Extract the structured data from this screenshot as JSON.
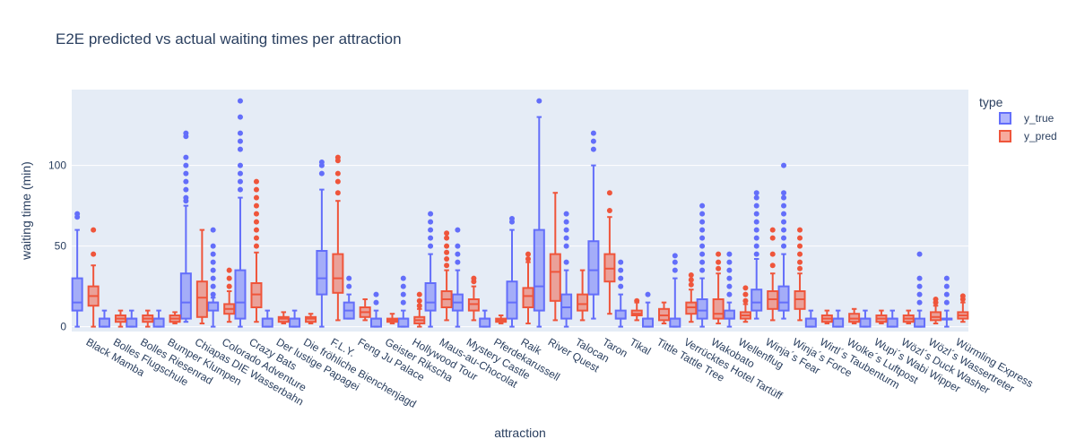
{
  "chart_data": {
    "type": "box",
    "title": "E2E predicted vs actual waiting times per attraction",
    "xlabel": "attraction",
    "ylabel": "waiting time (min)",
    "ylim": [
      -3,
      147
    ],
    "yticks": [
      0,
      50,
      100
    ],
    "grid": true,
    "legend": {
      "title": "type",
      "placement": "top-right",
      "entries": [
        "y_true",
        "y_pred"
      ]
    },
    "colors": {
      "y_true": "#636efa",
      "y_true_fill": "rgba(99,110,250,0.5)",
      "y_pred": "#ef553b",
      "y_pred_fill": "rgba(239,85,59,0.5)",
      "plot_bg": "#e5ecf6",
      "grid": "#ffffff"
    },
    "categories": [
      "Black Mamba",
      "Bolles Flugschule",
      "Bolles Riesenrad",
      "Bumper Klumpen",
      "Chiapas DIE Wasserbahn",
      "Colorado Adventure",
      "Crazy Bats",
      "Der lustige Papagei",
      "Die fröhliche Bienchenjagd",
      "F.L.Y.",
      "Feng Ju Palace",
      "Geister Rikscha",
      "Hollywood Tour",
      "Maus-au-Chocolat",
      "Mystery Castle",
      "Pferdekarussell",
      "Raik",
      "River Quest",
      "Talocan",
      "Taron",
      "Tikal",
      "Tittle Tattle Tree",
      "Verrücktes Hotel Tartüff",
      "Wakobato",
      "Wellenflug",
      "Winja´s Fear",
      "Winja´s Force",
      "Wirtl´s Taubenturm",
      "Wolke´s Luftpost",
      "Wupi´s Wabi Wipper",
      "Wözl´s Duck Washer",
      "Wözl´s Wassertreter",
      "Würmling Express"
    ],
    "series": [
      {
        "name": "y_true",
        "boxes": [
          {
            "min": 0,
            "q1": 10,
            "median": 15,
            "q3": 30,
            "max": 60,
            "outliers": [
              68,
              70
            ]
          },
          {
            "min": 0,
            "q1": 0,
            "median": 5,
            "q3": 5,
            "max": 10,
            "outliers": []
          },
          {
            "min": 0,
            "q1": 0,
            "median": 5,
            "q3": 5,
            "max": 10,
            "outliers": []
          },
          {
            "min": 0,
            "q1": 0,
            "median": 5,
            "q3": 5,
            "max": 10,
            "outliers": []
          },
          {
            "min": 3,
            "q1": 5,
            "median": 15,
            "q3": 33,
            "max": 75,
            "outliers": [
              78,
              80,
              85,
              90,
              95,
              100,
              105,
              118,
              120
            ]
          },
          {
            "min": 0,
            "q1": 10,
            "median": 15,
            "q3": 15,
            "max": 18,
            "outliers": [
              20,
              25,
              30,
              35,
              40,
              45,
              50,
              60
            ]
          },
          {
            "min": 0,
            "q1": 5,
            "median": 15,
            "q3": 35,
            "max": 80,
            "outliers": [
              85,
              90,
              95,
              100,
              110,
              115,
              120,
              130,
              140
            ]
          },
          {
            "min": 0,
            "q1": 0,
            "median": 5,
            "q3": 5,
            "max": 10,
            "outliers": []
          },
          {
            "min": 0,
            "q1": 0,
            "median": 5,
            "q3": 5,
            "max": 10,
            "outliers": []
          },
          {
            "min": 0,
            "q1": 20,
            "median": 30,
            "q3": 47,
            "max": 85,
            "outliers": [
              95,
              100,
              102
            ]
          },
          {
            "min": 5,
            "q1": 5,
            "median": 10,
            "q3": 15,
            "max": 20,
            "outliers": [
              25,
              30
            ]
          },
          {
            "min": 0,
            "q1": 0,
            "median": 5,
            "q3": 5,
            "max": 10,
            "outliers": [
              15,
              20
            ]
          },
          {
            "min": 0,
            "q1": 0,
            "median": 5,
            "q3": 5,
            "max": 10,
            "outliers": [
              15,
              20,
              25,
              30
            ]
          },
          {
            "min": 0,
            "q1": 10,
            "median": 15,
            "q3": 27,
            "max": 45,
            "outliers": [
              50,
              55,
              60,
              65,
              70
            ]
          },
          {
            "min": 0,
            "q1": 10,
            "median": 15,
            "q3": 20,
            "max": 35,
            "outliers": [
              40,
              45,
              50,
              60
            ]
          },
          {
            "min": 0,
            "q1": 0,
            "median": 5,
            "q3": 5,
            "max": 10,
            "outliers": []
          },
          {
            "min": 0,
            "q1": 5,
            "median": 15,
            "q3": 28,
            "max": 60,
            "outliers": [
              65,
              67
            ]
          },
          {
            "min": 0,
            "q1": 10,
            "median": 25,
            "q3": 60,
            "max": 130,
            "outliers": [
              140
            ]
          },
          {
            "min": 0,
            "q1": 5,
            "median": 12,
            "q3": 20,
            "max": 35,
            "outliers": [
              40,
              50,
              55,
              60,
              65,
              70
            ]
          },
          {
            "min": 5,
            "q1": 20,
            "median": 35,
            "q3": 53,
            "max": 100,
            "outliers": [
              110,
              115,
              120
            ]
          },
          {
            "min": 0,
            "q1": 5,
            "median": 5,
            "q3": 10,
            "max": 20,
            "outliers": [
              25,
              30,
              35,
              40
            ]
          },
          {
            "min": 0,
            "q1": 0,
            "median": 5,
            "q3": 5,
            "max": 15,
            "outliers": [
              20
            ]
          },
          {
            "min": 0,
            "q1": 0,
            "median": 5,
            "q3": 5,
            "max": 30,
            "outliers": [
              35,
              40,
              44
            ]
          },
          {
            "min": 0,
            "q1": 5,
            "median": 10,
            "q3": 17,
            "max": 30,
            "outliers": [
              35,
              40,
              45,
              50,
              55,
              60,
              65,
              70,
              75
            ]
          },
          {
            "min": 0,
            "q1": 5,
            "median": 5,
            "q3": 10,
            "max": 15,
            "outliers": [
              20,
              25,
              30,
              35,
              40,
              45
            ]
          },
          {
            "min": 5,
            "q1": 10,
            "median": 15,
            "q3": 23,
            "max": 42,
            "outliers": [
              45,
              50,
              55,
              60,
              65,
              70,
              75,
              80,
              83
            ]
          },
          {
            "min": 5,
            "q1": 10,
            "median": 15,
            "q3": 25,
            "max": 45,
            "outliers": [
              50,
              55,
              60,
              65,
              70,
              75,
              80,
              83,
              100
            ]
          },
          {
            "min": 0,
            "q1": 0,
            "median": 5,
            "q3": 5,
            "max": 10,
            "outliers": []
          },
          {
            "min": 0,
            "q1": 0,
            "median": 5,
            "q3": 5,
            "max": 10,
            "outliers": []
          },
          {
            "min": 0,
            "q1": 0,
            "median": 5,
            "q3": 5,
            "max": 10,
            "outliers": []
          },
          {
            "min": 0,
            "q1": 0,
            "median": 5,
            "q3": 5,
            "max": 10,
            "outliers": []
          },
          {
            "min": 0,
            "q1": 0,
            "median": 0,
            "q3": 5,
            "max": 10,
            "outliers": [
              15,
              20,
              25,
              30,
              45
            ]
          },
          {
            "min": 0,
            "q1": 5,
            "median": 5,
            "q3": 5,
            "max": 10,
            "outliers": [
              15,
              20,
              25,
              30
            ]
          }
        ]
      },
      {
        "name": "y_pred",
        "boxes": [
          {
            "min": 0,
            "q1": 13,
            "median": 19,
            "q3": 25,
            "max": 38,
            "outliers": [
              45,
              60
            ]
          },
          {
            "min": 0,
            "q1": 3,
            "median": 5,
            "q3": 7,
            "max": 10,
            "outliers": []
          },
          {
            "min": 0,
            "q1": 3,
            "median": 5,
            "q3": 7,
            "max": 10,
            "outliers": []
          },
          {
            "min": 2,
            "q1": 3,
            "median": 5,
            "q3": 7,
            "max": 9,
            "outliers": []
          },
          {
            "min": 2,
            "q1": 6,
            "median": 18,
            "q3": 28,
            "max": 60,
            "outliers": []
          },
          {
            "min": 3,
            "q1": 8,
            "median": 11,
            "q3": 14,
            "max": 22,
            "outliers": [
              25,
              30,
              35
            ]
          },
          {
            "min": 3,
            "q1": 12,
            "median": 20,
            "q3": 27,
            "max": 46,
            "outliers": [
              50,
              55,
              60,
              65,
              70,
              75,
              80,
              85,
              90
            ]
          },
          {
            "min": 2,
            "q1": 3,
            "median": 5,
            "q3": 6,
            "max": 9,
            "outliers": []
          },
          {
            "min": 2,
            "q1": 3,
            "median": 5,
            "q3": 6,
            "max": 8,
            "outliers": []
          },
          {
            "min": 4,
            "q1": 21,
            "median": 30,
            "q3": 45,
            "max": 78,
            "outliers": [
              83,
              90,
              95,
              103,
              105
            ]
          },
          {
            "min": 4,
            "q1": 6,
            "median": 9,
            "q3": 12,
            "max": 17,
            "outliers": []
          },
          {
            "min": 2,
            "q1": 3,
            "median": 4,
            "q3": 5,
            "max": 8,
            "outliers": []
          },
          {
            "min": 0,
            "q1": 2,
            "median": 4,
            "q3": 6,
            "max": 11,
            "outliers": [
              13,
              16,
              20
            ]
          },
          {
            "min": 4,
            "q1": 12,
            "median": 17,
            "q3": 22,
            "max": 35,
            "outliers": [
              38,
              42,
              46,
              50,
              55,
              58
            ]
          },
          {
            "min": 4,
            "q1": 10,
            "median": 14,
            "q3": 17,
            "max": 25,
            "outliers": [
              28,
              30
            ]
          },
          {
            "min": 2,
            "q1": 3,
            "median": 4,
            "q3": 5,
            "max": 7,
            "outliers": []
          },
          {
            "min": 2,
            "q1": 12,
            "median": 19,
            "q3": 24,
            "max": 40,
            "outliers": [
              42,
              45
            ]
          },
          {
            "min": 4,
            "q1": 16,
            "median": 34,
            "q3": 45,
            "max": 83,
            "outliers": []
          },
          {
            "min": 4,
            "q1": 10,
            "median": 14,
            "q3": 20,
            "max": 35,
            "outliers": []
          },
          {
            "min": 8,
            "q1": 28,
            "median": 36,
            "q3": 45,
            "max": 68,
            "outliers": [
              72,
              83
            ]
          },
          {
            "min": 4,
            "q1": 7,
            "median": 8,
            "q3": 10,
            "max": 15,
            "outliers": [
              16
            ]
          },
          {
            "min": 2,
            "q1": 4,
            "median": 7,
            "q3": 11,
            "max": 15,
            "outliers": []
          },
          {
            "min": 3,
            "q1": 8,
            "median": 12,
            "q3": 15,
            "max": 23,
            "outliers": [
              26,
              29,
              32
            ]
          },
          {
            "min": 2,
            "q1": 5,
            "median": 8,
            "q3": 17,
            "max": 33,
            "outliers": [
              36,
              40,
              45
            ]
          },
          {
            "min": 3,
            "q1": 5,
            "median": 7,
            "q3": 9,
            "max": 14,
            "outliers": [
              16,
              20,
              24
            ]
          },
          {
            "min": 4,
            "q1": 11,
            "median": 17,
            "q3": 22,
            "max": 33,
            "outliers": [
              38,
              45,
              55,
              60
            ]
          },
          {
            "min": 4,
            "q1": 11,
            "median": 17,
            "q3": 22,
            "max": 33,
            "outliers": [
              36,
              40,
              45,
              50,
              55,
              60
            ]
          },
          {
            "min": 2,
            "q1": 3,
            "median": 5,
            "q3": 7,
            "max": 10,
            "outliers": []
          },
          {
            "min": 2,
            "q1": 3,
            "median": 5,
            "q3": 8,
            "max": 11,
            "outliers": []
          },
          {
            "min": 2,
            "q1": 3,
            "median": 5,
            "q3": 7,
            "max": 10,
            "outliers": []
          },
          {
            "min": 2,
            "q1": 3,
            "median": 5,
            "q3": 7,
            "max": 10,
            "outliers": []
          },
          {
            "min": 2,
            "q1": 4,
            "median": 6,
            "q3": 9,
            "max": 13,
            "outliers": [
              15,
              17
            ]
          },
          {
            "min": 3,
            "q1": 5,
            "median": 7,
            "q3": 9,
            "max": 15,
            "outliers": [
              17,
              19
            ]
          }
        ]
      }
    ]
  }
}
